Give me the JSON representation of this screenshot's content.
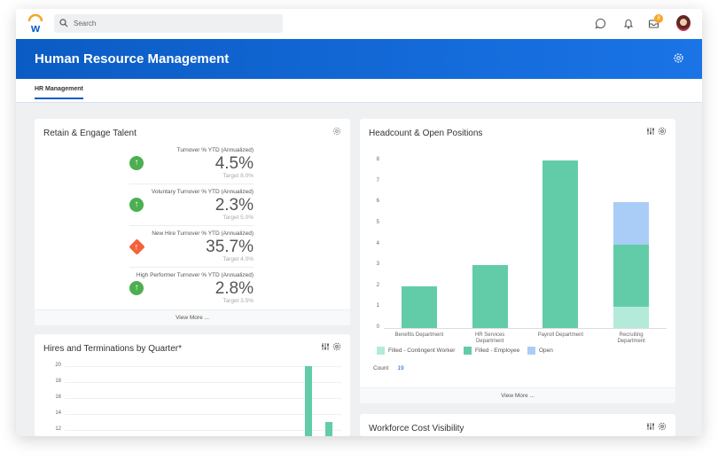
{
  "topbar": {
    "search_placeholder": "Search",
    "notification_badge": "8"
  },
  "banner": {
    "title": "Human Resource Management"
  },
  "tabs": [
    {
      "label": "HR Management",
      "active": true
    }
  ],
  "retain": {
    "title": "Retain & Engage Talent",
    "view_more": "View More ...",
    "metrics": [
      {
        "label": "Turnover % YTD (Annualized)",
        "value": "4.5%",
        "target": "Target 8.0%",
        "status": "up-good"
      },
      {
        "label": "Voluntary Turnover % YTD (Annualized)",
        "value": "2.3%",
        "target": "Target 5.0%",
        "status": "up-good"
      },
      {
        "label": "New Hire Turnover % YTD (Annualized)",
        "value": "35.7%",
        "target": "Target 4.0%",
        "status": "warning"
      },
      {
        "label": "High Performer Turnover % YTD (Annualized)",
        "value": "2.8%",
        "target": "Target 3.5%",
        "status": "up-good"
      }
    ]
  },
  "headcount": {
    "title": "Headcount & Open Positions",
    "view_more": "View More ...",
    "count_label": "Count",
    "count_value": "19"
  },
  "hires": {
    "title": "Hires and Terminations by Quarter*"
  },
  "workforce": {
    "title": "Workforce Cost Visibility"
  },
  "colors": {
    "accent": "#0b5bc4",
    "contingent": "#b4ead9",
    "employee": "#62cca8",
    "open": "#a9cdf7"
  },
  "chart_data": [
    {
      "type": "bar",
      "stacked": true,
      "title": "Headcount & Open Positions",
      "categories": [
        "Benefits Department",
        "HR Services Department",
        "Payroll Department",
        "Recruiting Department"
      ],
      "series": [
        {
          "name": "Filled - Contingent Worker",
          "values": [
            0,
            0,
            0,
            1
          ]
        },
        {
          "name": "Filled - Employee",
          "values": [
            2,
            3,
            8,
            3
          ]
        },
        {
          "name": "Open",
          "values": [
            0,
            0,
            0,
            2
          ]
        }
      ],
      "ylim": [
        0,
        8
      ],
      "yticks": [
        0,
        1,
        2,
        3,
        4,
        5,
        6,
        7,
        8
      ],
      "legend": "bottom",
      "grid": false
    },
    {
      "type": "bar",
      "title": "Hires and Terminations by Quarter*",
      "values": [
        20,
        13
      ],
      "yticks": [
        12,
        14,
        16,
        18,
        20
      ],
      "grid": true
    }
  ]
}
